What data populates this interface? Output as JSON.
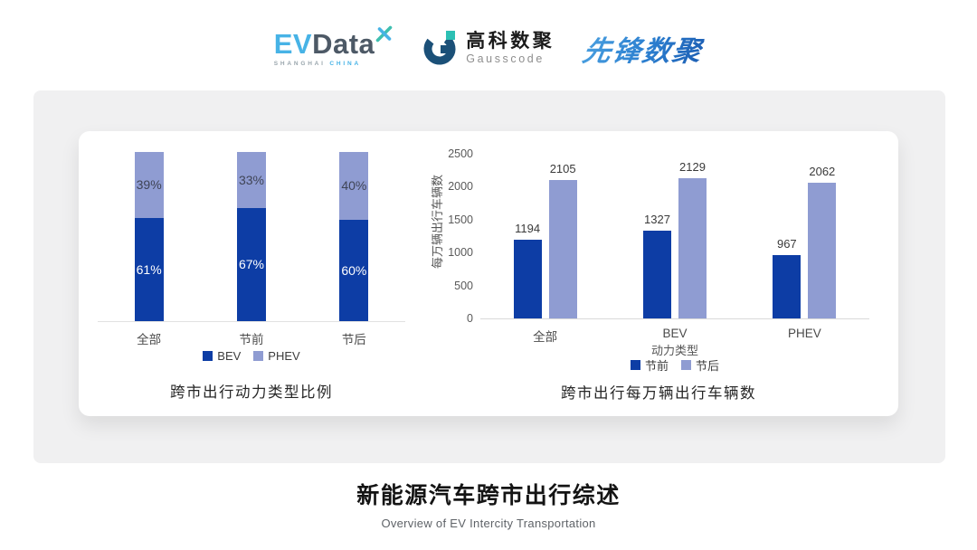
{
  "header": {
    "evdata": {
      "ev": "EV",
      "data": "Data",
      "x_icon": "x-star-icon",
      "tagline_left": "SHANGHAI",
      "tagline_right": "CHINA"
    },
    "gausscode": {
      "icon": "g-mark-icon",
      "cn": "高科数聚",
      "en": "Gausscode"
    },
    "xianfeng": {
      "text": "先锋数聚"
    }
  },
  "chart_data": [
    {
      "type": "bar",
      "subtype": "stacked-percent",
      "title": "跨市出行动力类型比例",
      "categories": [
        "全部",
        "节前",
        "节后"
      ],
      "series": [
        {
          "name": "BEV",
          "values": [
            61,
            67,
            60
          ],
          "unit": "%",
          "color": "#0d3da5"
        },
        {
          "name": "PHEV",
          "values": [
            39,
            33,
            40
          ],
          "unit": "%",
          "color": "#8f9cd2"
        }
      ],
      "ylim": [
        0,
        100
      ],
      "grid": false,
      "legend_position": "bottom"
    },
    {
      "type": "bar",
      "subtype": "grouped",
      "title": "跨市出行每万辆出行车辆数",
      "categories": [
        "全部",
        "BEV",
        "PHEV"
      ],
      "xlabel": "动力类型",
      "ylabel": "每万辆出行车辆数",
      "yticks": [
        0,
        500,
        1000,
        1500,
        2000,
        2500
      ],
      "ylim": [
        0,
        2500
      ],
      "series": [
        {
          "name": "节前",
          "values": [
            1194,
            1327,
            967
          ],
          "color": "#0d3da5"
        },
        {
          "name": "节后",
          "values": [
            2105,
            2129,
            2062
          ],
          "color": "#8f9cd2"
        }
      ],
      "grid": false,
      "legend_position": "bottom"
    }
  ],
  "footer": {
    "title": "新能源汽车跨市出行综述",
    "subtitle": "Overview of EV Intercity Transportation"
  },
  "colors": {
    "series_dark": "#0d3da5",
    "series_light": "#8f9cd2",
    "card_bg": "#f0f0f1",
    "evdata_blue": "#47b3e6",
    "evdata_slate": "#4d5966",
    "teal": "#2cc0b4",
    "gausscode_navy": "#1b5078",
    "xianfeng_blue": "#2b7ecf"
  }
}
